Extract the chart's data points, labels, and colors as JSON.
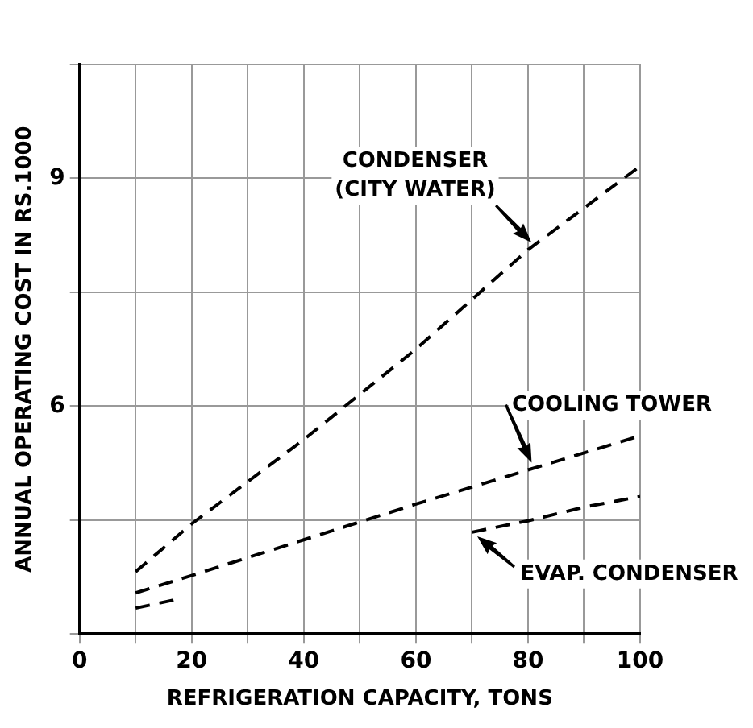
{
  "chart_data": {
    "type": "line",
    "xlabel": "REFRIGERATION CAPACITY, TONS",
    "ylabel": "ANNUAL OPERATING COST IN RS.1000",
    "xlim": [
      0,
      100
    ],
    "ylim": [
      3,
      10.5
    ],
    "xticks": [
      0,
      {
        "value": 10,
        "label": null
      },
      20,
      {
        "value": 30,
        "label": null
      },
      40,
      {
        "value": 50,
        "label": null
      },
      60,
      {
        "value": 70,
        "label": null
      },
      80,
      {
        "value": 90,
        "label": null
      },
      100
    ],
    "yticks": [
      {
        "value": 3,
        "label": null
      },
      {
        "value": 4.5,
        "label": null
      },
      6,
      {
        "value": 7.5,
        "label": null
      },
      9,
      {
        "value": 10.5,
        "label": null
      }
    ],
    "grid": true,
    "legend": false,
    "marker": "none",
    "series": [
      {
        "name": "CONDENSER (CITY WATER)",
        "color": "#000000",
        "line_style": "dashed",
        "x": [
          10,
          20,
          40,
          60,
          80,
          100
        ],
        "values": [
          3.82,
          4.45,
          5.56,
          6.75,
          8.06,
          9.16
        ]
      },
      {
        "name": "COOLING TOWER",
        "color": "#000000",
        "line_style": "dashed",
        "x": [
          10,
          20,
          40,
          60,
          80,
          100
        ],
        "values": [
          3.54,
          3.77,
          4.24,
          4.71,
          5.16,
          5.61
        ]
      },
      {
        "name": "EVAP. CONDENSER",
        "color": "#000000",
        "line_style": "dashed",
        "x": [
          10,
          17,
          45,
          70,
          80,
          90,
          100
        ],
        "values": [
          3.34,
          3.45,
          null,
          4.34,
          4.49,
          4.67,
          4.81
        ]
      }
    ]
  }
}
